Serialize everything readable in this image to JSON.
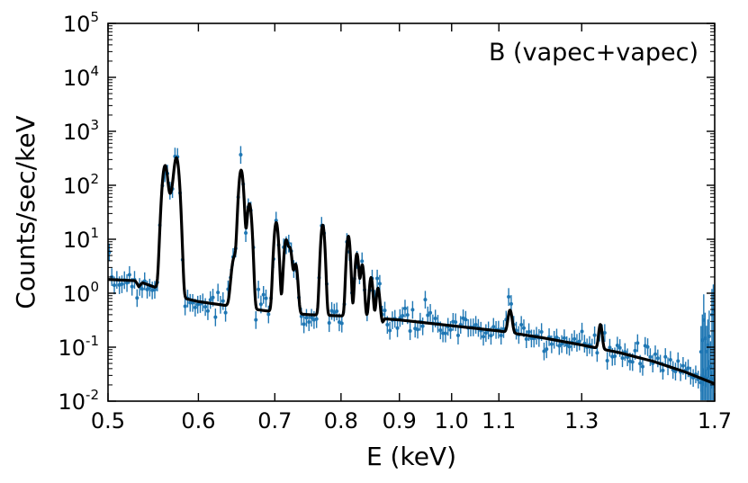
{
  "chart_data": {
    "type": "scatter",
    "annotation": "B (vapec+vapec)",
    "xlabel": "E (keV)",
    "ylabel": "Counts/sec/keV",
    "x_scale": "log",
    "y_scale": "log",
    "xlim": [
      0.5,
      1.7
    ],
    "ylim": [
      0.01,
      100000
    ],
    "grid": false,
    "x_ticks": [
      {
        "value": 0.5,
        "label": "0.5"
      },
      {
        "value": 0.6,
        "label": "0.6"
      },
      {
        "value": 0.7,
        "label": "0.7"
      },
      {
        "value": 0.8,
        "label": "0.8"
      },
      {
        "value": 0.9,
        "label": "0.9"
      },
      {
        "value": 1.0,
        "label": "1.0"
      },
      {
        "value": 1.1,
        "label": "1.1"
      },
      {
        "value": 1.3,
        "label": "1.3"
      },
      {
        "value": 1.7,
        "label": "1.7"
      }
    ],
    "y_ticks": [
      {
        "value": 0.01,
        "base": "10",
        "exp": "-2"
      },
      {
        "value": 0.1,
        "base": "10",
        "exp": "-1"
      },
      {
        "value": 1,
        "base": "10",
        "exp": "0"
      },
      {
        "value": 10,
        "base": "10",
        "exp": "1"
      },
      {
        "value": 100,
        "base": "10",
        "exp": "2"
      },
      {
        "value": 1000,
        "base": "10",
        "exp": "3"
      },
      {
        "value": 10000,
        "base": "10",
        "exp": "4"
      },
      {
        "value": 100000,
        "base": "10",
        "exp": "5"
      }
    ],
    "data_color": "#1f77b4",
    "model_color": "#000000",
    "model_continuum": [
      [
        0.5,
        1.8
      ],
      [
        0.53,
        1.7
      ],
      [
        0.555,
        1.2
      ],
      [
        0.57,
        0.9
      ],
      [
        0.6,
        0.7
      ],
      [
        0.65,
        0.55
      ],
      [
        0.7,
        0.45
      ],
      [
        0.75,
        0.4
      ],
      [
        0.8,
        0.38
      ],
      [
        0.85,
        0.35
      ],
      [
        0.9,
        0.32
      ],
      [
        1.0,
        0.25
      ],
      [
        1.1,
        0.2
      ],
      [
        1.2,
        0.15
      ],
      [
        1.3,
        0.11
      ],
      [
        1.4,
        0.08
      ],
      [
        1.5,
        0.055
      ],
      [
        1.6,
        0.035
      ],
      [
        1.7,
        0.021
      ]
    ],
    "model_lines": [
      {
        "e": 0.561,
        "peak": 230,
        "width": 0.0025
      },
      {
        "e": 0.568,
        "peak": 55,
        "width": 0.0025
      },
      {
        "e": 0.574,
        "peak": 320,
        "width": 0.0025
      },
      {
        "e": 0.645,
        "peak": 4,
        "width": 0.003
      },
      {
        "e": 0.654,
        "peak": 190,
        "width": 0.0025
      },
      {
        "e": 0.665,
        "peak": 45,
        "width": 0.0025
      },
      {
        "e": 0.702,
        "peak": 20,
        "width": 0.0025
      },
      {
        "e": 0.716,
        "peak": 9,
        "width": 0.0025
      },
      {
        "e": 0.722,
        "peak": 6,
        "width": 0.0025
      },
      {
        "e": 0.73,
        "peak": 3,
        "width": 0.0025
      },
      {
        "e": 0.771,
        "peak": 18,
        "width": 0.0025
      },
      {
        "e": 0.812,
        "peak": 11,
        "width": 0.0025
      },
      {
        "e": 0.826,
        "peak": 5,
        "width": 0.0025
      },
      {
        "e": 0.835,
        "peak": 3,
        "width": 0.0025
      },
      {
        "e": 0.85,
        "peak": 1.6,
        "width": 0.0025
      },
      {
        "e": 0.862,
        "peak": 0.9,
        "width": 0.0025
      },
      {
        "e": 1.125,
        "peak": 0.3,
        "width": 0.004
      },
      {
        "e": 1.35,
        "peak": 0.17,
        "width": 0.004
      }
    ],
    "model_edges": [
      {
        "e": 0.532,
        "factor": 0.8
      },
      {
        "e": 0.87,
        "factor": 0.85
      }
    ],
    "data_points": {
      "count": 240,
      "scatter_dex": 0.13,
      "errorbar_fraction": 0.32
    }
  }
}
